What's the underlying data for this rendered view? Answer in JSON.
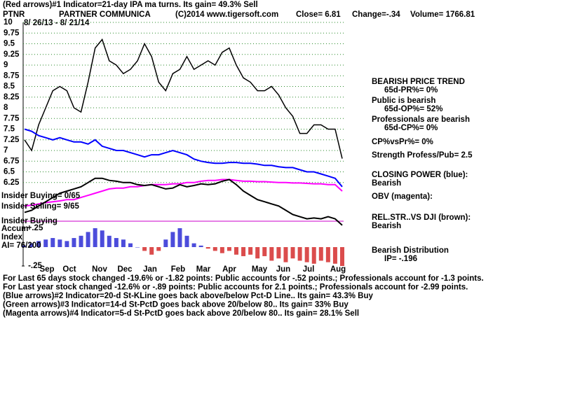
{
  "header": {
    "indicator": "(Red arrows)#1 Indicator=21-day IPA ma turns. Its gain= 49.3% Sell",
    "symbol": "PTNR",
    "company": "PARTNER COMMUNICA",
    "copyright": "(C)2014 www.tigersoft.com",
    "close": "Close= 6.81",
    "change": "Change=-.34",
    "volume": "Volume= 1766.81",
    "dates": "8/ 26/13 - 8/ 21/14"
  },
  "left_labels": [
    "Insider Buying= 0/65",
    "Insider Selling= 9/65",
    "Insider Buying",
    "Accum",
    "Index",
    "AI= 76/200"
  ],
  "right_panel": [
    "BEARISH PRICE TREND",
    "65d-PR%= 0%",
    "Public is bearish",
    "65d-OP%= 52%",
    "Professionals are bearish",
    "65d-CP%= 0%",
    "CP%vsPr%=  0%",
    "Strength Profess/Pub= 2.5",
    "CLOSING POWER (blue):",
    "Bearish",
    "OBV (magenta):",
    "REL.STR..VS DJI (brown):",
    "Bearish",
    "Bearish Distribution",
    "IP= -.196"
  ],
  "footer": [
    "For Last 65 days stock changed -19.6% or -1.82 points:  Public accounts for -.52 points.;  Professionals account for -1.3 points.",
    "For Last year stock changed -12.6% or -.89 points:  Public accounts for  2.1 points.;  Professionals account for -2.99 points.",
    "(Blue arrows)#2 Indicator=20-d St-KLine goes back above/below Pct-D Line.. Its gain= 43.3% Buy",
    "(Green arrows)#3 Indicator=14-d St-PctD goes back above 20/below 80.. Its gain= 33% Buy",
    "(Magenta arrows)#4 Indicator=5-d St-PctD goes back above 20/below 80.. Its gain= 28.1% Sell"
  ],
  "chart_data": {
    "type": "line",
    "months": [
      "Sep",
      "Oct",
      "Nov",
      "Dec",
      "Jan",
      "Feb",
      "Mar",
      "Apr",
      "May",
      "Jun",
      "Jul",
      "Aug"
    ],
    "ylim": [
      5.0,
      10
    ],
    "yticks": [
      10,
      9.75,
      9.5,
      9.25,
      9,
      8.75,
      8.5,
      8.25,
      8,
      7.75,
      7.5,
      7.25,
      7,
      6.75,
      6.5,
      6.25
    ],
    "grid": true,
    "series": [
      {
        "color": "#000000",
        "values": [
          7.25,
          7.0,
          7.6,
          8.0,
          8.4,
          8.5,
          8.4,
          8.0,
          7.9,
          8.6,
          9.4,
          9.6,
          9.1,
          9.0,
          8.8,
          8.9,
          9.1,
          9.5,
          9.2,
          8.6,
          8.4,
          8.8,
          8.9,
          9.2,
          8.9,
          9.0,
          9.1,
          9.0,
          9.3,
          9.4,
          9.0,
          8.7,
          8.6,
          8.4,
          8.4,
          8.5,
          8.3,
          8.0,
          7.8,
          7.4,
          7.4,
          7.6,
          7.6,
          7.5,
          7.5,
          6.81
        ]
      },
      {
        "color": "#0000ff",
        "values": [
          7.5,
          7.45,
          7.35,
          7.3,
          7.25,
          7.3,
          7.25,
          7.2,
          7.2,
          7.15,
          7.25,
          7.1,
          7.05,
          7.0,
          7.0,
          6.95,
          6.9,
          6.85,
          6.9,
          6.9,
          6.95,
          7.0,
          6.95,
          6.9,
          6.8,
          6.75,
          6.72,
          6.7,
          6.7,
          6.72,
          6.72,
          6.7,
          6.7,
          6.68,
          6.65,
          6.65,
          6.62,
          6.6,
          6.6,
          6.55,
          6.5,
          6.5,
          6.45,
          6.4,
          6.35,
          6.15
        ]
      },
      {
        "color": "#ff00ff",
        "values": [
          5.7,
          5.72,
          5.75,
          5.78,
          5.8,
          5.82,
          5.85,
          5.85,
          5.9,
          5.95,
          6.0,
          6.05,
          6.1,
          6.12,
          6.12,
          6.15,
          6.15,
          6.18,
          6.2,
          6.2,
          6.2,
          6.22,
          6.22,
          6.25,
          6.25,
          6.28,
          6.3,
          6.3,
          6.32,
          6.32,
          6.3,
          6.28,
          6.28,
          6.27,
          6.27,
          6.26,
          6.25,
          6.25,
          6.24,
          6.24,
          6.23,
          6.22,
          6.22,
          6.2,
          6.2,
          6.05
        ]
      },
      {
        "color": "#000000",
        "values": [
          5.55,
          5.6,
          5.7,
          5.8,
          5.9,
          6.0,
          6.05,
          6.1,
          6.15,
          6.25,
          6.35,
          6.35,
          6.3,
          6.28,
          6.25,
          6.25,
          6.2,
          6.18,
          6.2,
          6.15,
          6.1,
          6.12,
          6.2,
          6.15,
          6.18,
          6.22,
          6.2,
          6.22,
          6.28,
          6.32,
          6.2,
          6.05,
          5.95,
          5.85,
          5.8,
          5.75,
          5.7,
          5.6,
          5.5,
          5.45,
          5.4,
          5.42,
          5.4,
          5.45,
          5.4,
          5.25
        ]
      }
    ],
    "accum": {
      "ylim": [
        -0.25,
        0.25
      ],
      "yticks": [
        {
          "value": 0.25,
          "label": "+.25"
        },
        {
          "value": -0.25,
          "label": "-.25"
        }
      ],
      "pos_color": "#0000cc",
      "neg_color": "#cc0000",
      "values": [
        0.02,
        0.05,
        0.08,
        0.1,
        0.12,
        0.1,
        0.08,
        0.12,
        0.15,
        0.2,
        0.25,
        0.22,
        0.15,
        0.12,
        0.1,
        0.05,
        0.0,
        -0.05,
        -0.1,
        -0.05,
        0.1,
        0.2,
        0.25,
        0.15,
        0.05,
        0.02,
        -0.02,
        -0.05,
        -0.08,
        -0.05,
        -0.1,
        -0.12,
        -0.1,
        -0.15,
        -0.12,
        -0.18,
        -0.15,
        -0.2,
        -0.15,
        -0.18,
        -0.2,
        -0.22,
        -0.18,
        -0.2,
        -0.22,
        -0.25
      ]
    }
  }
}
